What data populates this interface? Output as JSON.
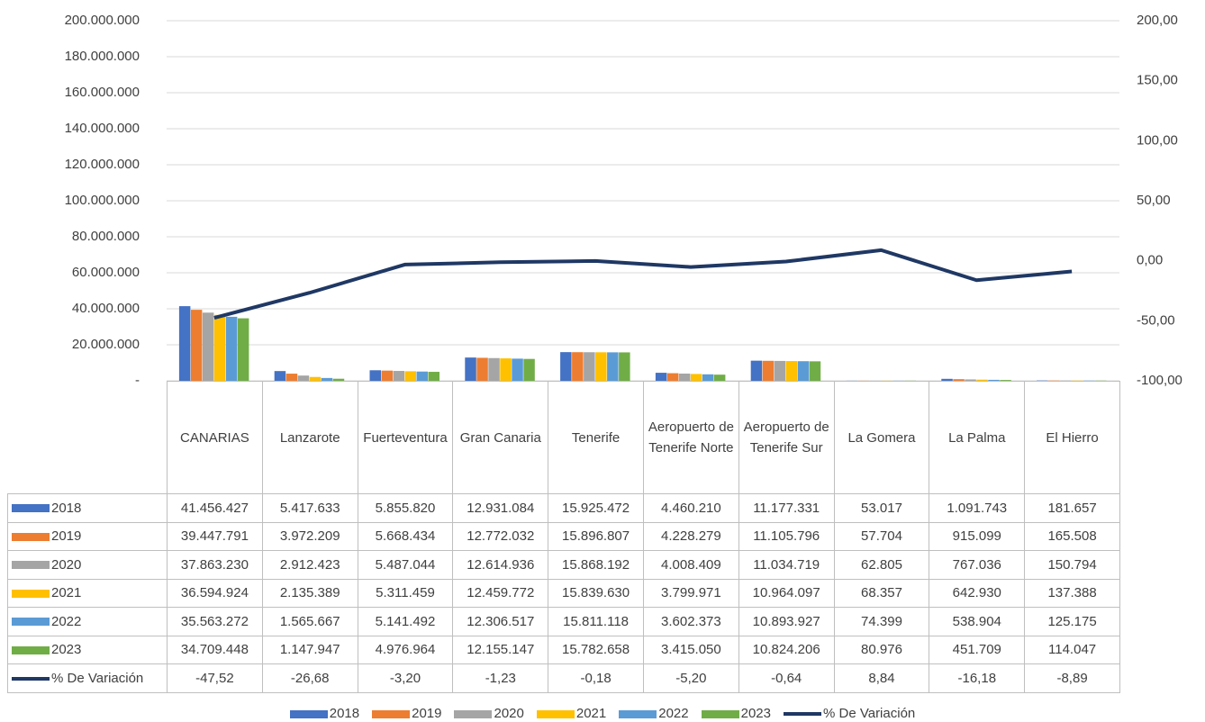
{
  "chart_data": {
    "type": "bar",
    "categories": [
      "CANARIAS",
      "Lanzarote",
      "Fuerteventura",
      "Gran Canaria",
      "Tenerife",
      "Aeropuerto de Tenerife Norte",
      "Aeropuerto de Tenerife Sur",
      "La Gomera",
      "La Palma",
      "El Hierro"
    ],
    "series": [
      {
        "name": "2018",
        "color": "#4472c4",
        "values": [
          41456427,
          5417633,
          5855820,
          12931084,
          15925472,
          4460210,
          11177331,
          53017,
          1091743,
          181657
        ],
        "value_labels": [
          "41.456.427",
          "5.417.633",
          "5.855.820",
          "12.931.084",
          "15.925.472",
          "4.460.210",
          "11.177.331",
          "53.017",
          "1.091.743",
          "181.657"
        ]
      },
      {
        "name": "2019",
        "color": "#ed7d31",
        "values": [
          39447791,
          3972209,
          5668434,
          12772032,
          15896807,
          4228279,
          11105796,
          57704,
          915099,
          165508
        ],
        "value_labels": [
          "39.447.791",
          "3.972.209",
          "5.668.434",
          "12.772.032",
          "15.896.807",
          "4.228.279",
          "11.105.796",
          "57.704",
          "915.099",
          "165.508"
        ]
      },
      {
        "name": "2020",
        "color": "#a5a5a5",
        "values": [
          37863230,
          2912423,
          5487044,
          12614936,
          15868192,
          4008409,
          11034719,
          62805,
          767036,
          150794
        ],
        "value_labels": [
          "37.863.230",
          "2.912.423",
          "5.487.044",
          "12.614.936",
          "15.868.192",
          "4.008.409",
          "11.034.719",
          "62.805",
          "767.036",
          "150.794"
        ]
      },
      {
        "name": "2021",
        "color": "#ffc000",
        "values": [
          36594924,
          2135389,
          5311459,
          12459772,
          15839630,
          3799971,
          10964097,
          68357,
          642930,
          137388
        ],
        "value_labels": [
          "36.594.924",
          "2.135.389",
          "5.311.459",
          "12.459.772",
          "15.839.630",
          "3.799.971",
          "10.964.097",
          "68.357",
          "642.930",
          "137.388"
        ]
      },
      {
        "name": "2022",
        "color": "#5b9bd5",
        "values": [
          35563272,
          1565667,
          5141492,
          12306517,
          15811118,
          3602373,
          10893927,
          74399,
          538904,
          125175
        ],
        "value_labels": [
          "35.563.272",
          "1.565.667",
          "5.141.492",
          "12.306.517",
          "15.811.118",
          "3.602.373",
          "10.893.927",
          "74.399",
          "538.904",
          "125.175"
        ]
      },
      {
        "name": "2023",
        "color": "#70ad47",
        "values": [
          34709448,
          1147947,
          4976964,
          12155147,
          15782658,
          3415050,
          10824206,
          80976,
          451709,
          114047
        ],
        "value_labels": [
          "34.709.448",
          "1.147.947",
          "4.976.964",
          "12.155.147",
          "15.782.658",
          "3.415.050",
          "10.824.206",
          "80.976",
          "451.709",
          "114.047"
        ]
      },
      {
        "name": "% De Variación",
        "type": "line",
        "axis": "y2",
        "color": "#1f3864",
        "values": [
          -47.52,
          -26.68,
          -3.2,
          -1.23,
          -0.18,
          -5.2,
          -0.64,
          8.84,
          -16.18,
          -8.89
        ],
        "value_labels": [
          "-47,52",
          "-26,68",
          "-3,20",
          "-1,23",
          "-0,18",
          "-5,20",
          "-0,64",
          "8,84",
          "-16,18",
          "-8,89"
        ]
      }
    ],
    "ylim": [
      0,
      200000000
    ],
    "yticks": [
      {
        "value": 0,
        "label": "-"
      },
      {
        "value": 20000000,
        "label": "20.000.000"
      },
      {
        "value": 40000000,
        "label": "40.000.000"
      },
      {
        "value": 60000000,
        "label": "60.000.000"
      },
      {
        "value": 80000000,
        "label": "80.000.000"
      },
      {
        "value": 100000000,
        "label": "100.000.000"
      },
      {
        "value": 120000000,
        "label": "120.000.000"
      },
      {
        "value": 140000000,
        "label": "140.000.000"
      },
      {
        "value": 160000000,
        "label": "160.000.000"
      },
      {
        "value": 180000000,
        "label": "180.000.000"
      },
      {
        "value": 200000000,
        "label": "200.000.000"
      }
    ],
    "y2lim": [
      -100,
      200
    ],
    "y2ticks": [
      {
        "value": -100,
        "label": "-100,00"
      },
      {
        "value": -50,
        "label": "-50,00"
      },
      {
        "value": 0,
        "label": "0,00"
      },
      {
        "value": 50,
        "label": "50,00"
      },
      {
        "value": 100,
        "label": "100,00"
      },
      {
        "value": 150,
        "label": "150,00"
      },
      {
        "value": 200,
        "label": "200,00"
      }
    ],
    "grid": true,
    "legend": "bottom"
  }
}
